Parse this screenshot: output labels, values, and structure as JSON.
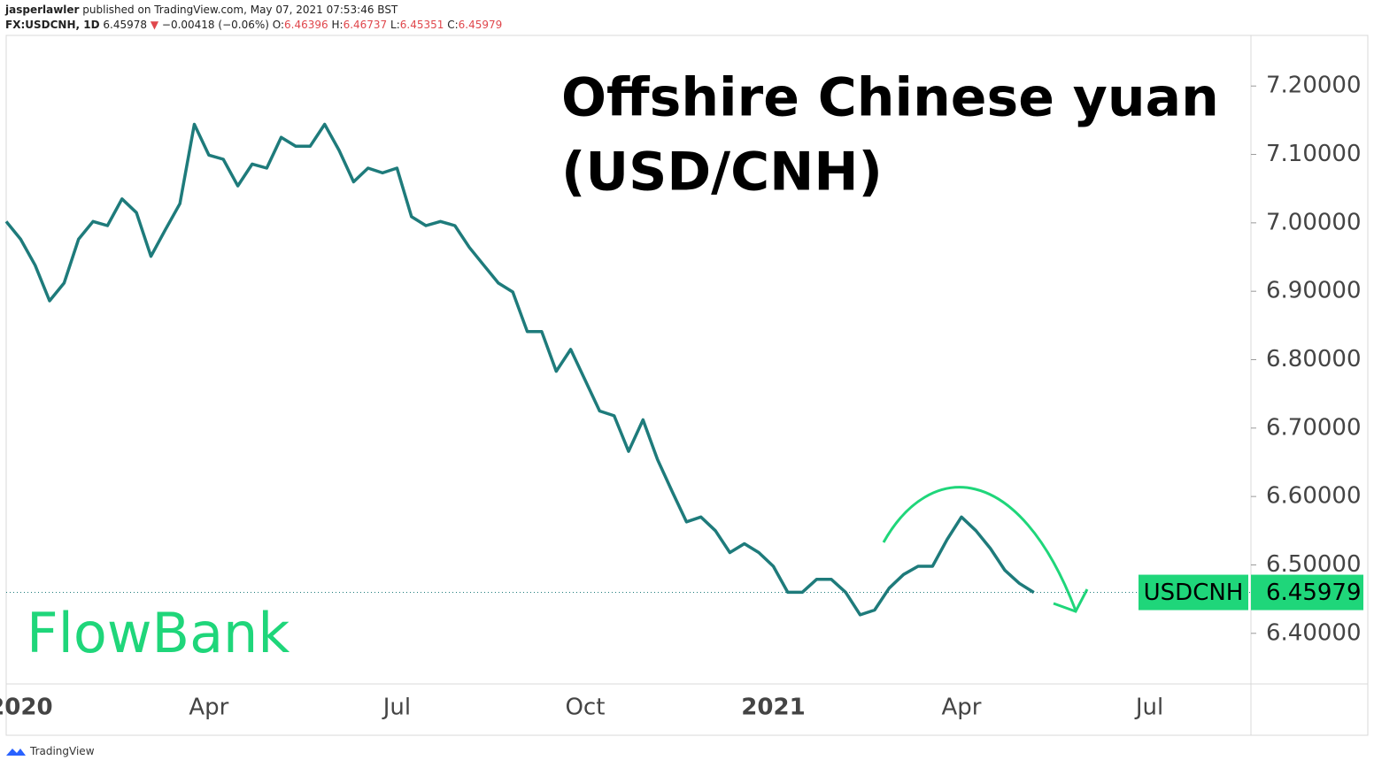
{
  "header": {
    "author": "jasperlawler",
    "published": "published on TradingView.com, May 07, 2021 07:53:46 BST",
    "symbol": "FX:USDCNH, 1D",
    "price": "6.45978",
    "arrow": "▼",
    "change": "−0.00418 (−0.06%)",
    "o_label": "O:",
    "o": "6.46396",
    "h_label": "H:",
    "h": "6.46737",
    "l_label": "L:",
    "l": "6.45351",
    "c_label": "C:",
    "c": "6.45979"
  },
  "footer": "TradingView",
  "logo": "FlowBank",
  "chart_data": {
    "type": "line",
    "title": [
      "Offshire Chinese yuan",
      "(USD/CNH)"
    ],
    "categories": [
      null,
      "2020",
      null,
      null,
      null,
      null,
      null,
      null,
      null,
      null,
      null,
      null,
      null,
      null,
      "Apr",
      null,
      null,
      null,
      null,
      null,
      null,
      null,
      null,
      null,
      null,
      null,
      null,
      "Jul",
      null,
      null,
      null,
      null,
      null,
      null,
      null,
      null,
      null,
      null,
      null,
      null,
      "Oct",
      null,
      null,
      null,
      null,
      null,
      null,
      null,
      null,
      null,
      null,
      null,
      null,
      "2021",
      null,
      null,
      null,
      null,
      null,
      null,
      null,
      null,
      null,
      null,
      null,
      null,
      "Apr",
      null,
      null,
      null,
      null,
      null,
      null,
      null,
      null,
      null,
      null,
      null,
      null,
      "Jul",
      null,
      null,
      null,
      null,
      null,
      null
    ],
    "series": [
      {
        "name": "USDCNH",
        "color": "#1e7b7b",
        "values": [
          7.002,
          6.976,
          6.938,
          6.886,
          6.912,
          6.976,
          7.002,
          6.996,
          7.035,
          7.015,
          6.951,
          6.99,
          7.028,
          7.144,
          7.099,
          7.093,
          7.054,
          7.086,
          7.08,
          7.125,
          7.112,
          7.112,
          7.144,
          7.106,
          7.06,
          7.08,
          7.073,
          7.08,
          7.009,
          6.996,
          7.002,
          6.996,
          6.964,
          6.938,
          6.912,
          6.899,
          6.841,
          6.841,
          6.783,
          6.815,
          6.77,
          6.725,
          6.718,
          6.666,
          6.712,
          6.654,
          6.608,
          6.563,
          6.57,
          6.55,
          6.518,
          6.531,
          6.518,
          6.498,
          6.46,
          6.46,
          6.479,
          6.479,
          6.46,
          6.427,
          6.434,
          6.466,
          6.486,
          6.498,
          6.498,
          6.537,
          6.57,
          6.55,
          6.524,
          6.492,
          6.473,
          6.45979,
          null,
          null,
          null,
          null,
          null,
          null,
          null,
          null,
          null,
          null,
          null,
          null,
          null,
          null
        ]
      }
    ],
    "last_color": "#1fd67a",
    "ylim": [
      6.326,
      7.274
    ],
    "yticks": [
      {
        "value": 6.4,
        "label": "6.40000"
      },
      {
        "value": 6.5,
        "label": "6.50000"
      },
      {
        "value": 6.6,
        "label": "6.60000"
      },
      {
        "value": 6.7,
        "label": "6.70000"
      },
      {
        "value": 6.8,
        "label": "6.80000"
      },
      {
        "value": 6.9,
        "label": "6.90000"
      },
      {
        "value": 7.0,
        "label": "7.00000"
      },
      {
        "value": 7.1,
        "label": "7.10000"
      },
      {
        "value": 7.2,
        "label": "7.20000"
      }
    ],
    "grid": false
  }
}
